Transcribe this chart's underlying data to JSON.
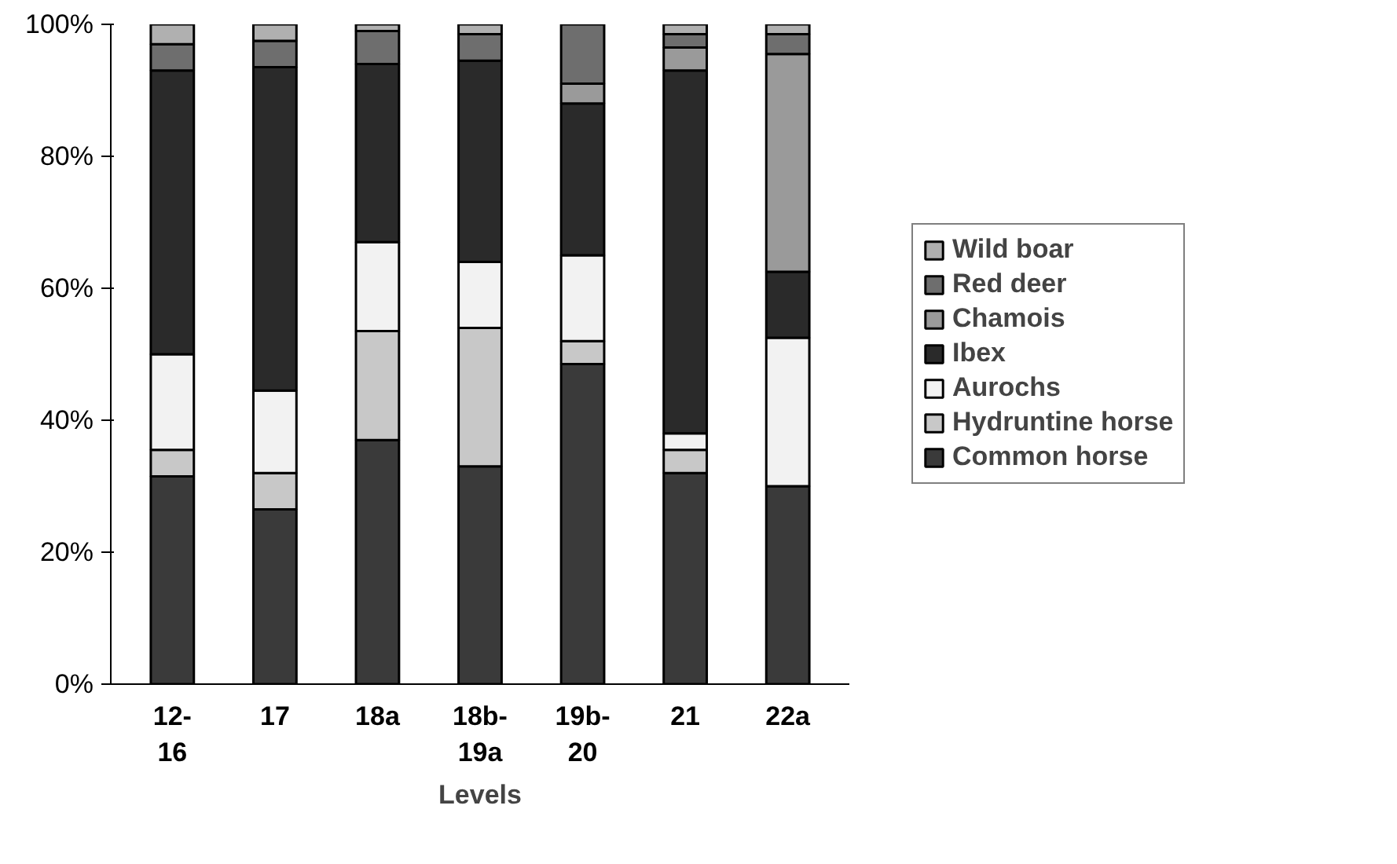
{
  "chart_data": {
    "type": "bar",
    "stacked": true,
    "xlabel": "Levels",
    "categories": [
      "12-\n16",
      "17",
      "18a",
      "18b-\n19a",
      "19b-\n20",
      "21",
      "22a"
    ],
    "series": [
      {
        "name": "Common horse",
        "color": "#3a3a3a",
        "values": [
          31.5,
          26.5,
          37,
          33,
          48.5,
          32,
          30
        ]
      },
      {
        "name": "Hydruntine horse",
        "color": "#c8c8c8",
        "values": [
          4,
          5.5,
          16.5,
          21,
          3.5,
          3.5,
          0
        ]
      },
      {
        "name": "Aurochs",
        "color": "#f2f2f2",
        "values": [
          14.5,
          12.5,
          13.5,
          10,
          13,
          2.5,
          22.5
        ]
      },
      {
        "name": "Ibex",
        "color": "#2a2a2a",
        "values": [
          43,
          49,
          27,
          30.5,
          23,
          55,
          10
        ]
      },
      {
        "name": "Chamois",
        "color": "#9a9a9a",
        "values": [
          0,
          0,
          0,
          0,
          3,
          3.5,
          33
        ]
      },
      {
        "name": "Red deer",
        "color": "#6e6e6e",
        "values": [
          4,
          4,
          5,
          4,
          9,
          2,
          3
        ]
      },
      {
        "name": "Wild boar",
        "color": "#b0b0b0",
        "values": [
          3,
          2.5,
          1,
          1.5,
          0,
          1.5,
          1.5
        ]
      }
    ],
    "ylim": [
      0,
      100
    ],
    "yticks": [
      {
        "value": 0,
        "label": "0%"
      },
      {
        "value": 20,
        "label": "20%"
      },
      {
        "value": 40,
        "label": "40%"
      },
      {
        "value": 60,
        "label": "60%"
      },
      {
        "value": 80,
        "label": "80%"
      },
      {
        "value": 100,
        "label": "100%"
      }
    ],
    "grid": false,
    "legend": "right"
  }
}
